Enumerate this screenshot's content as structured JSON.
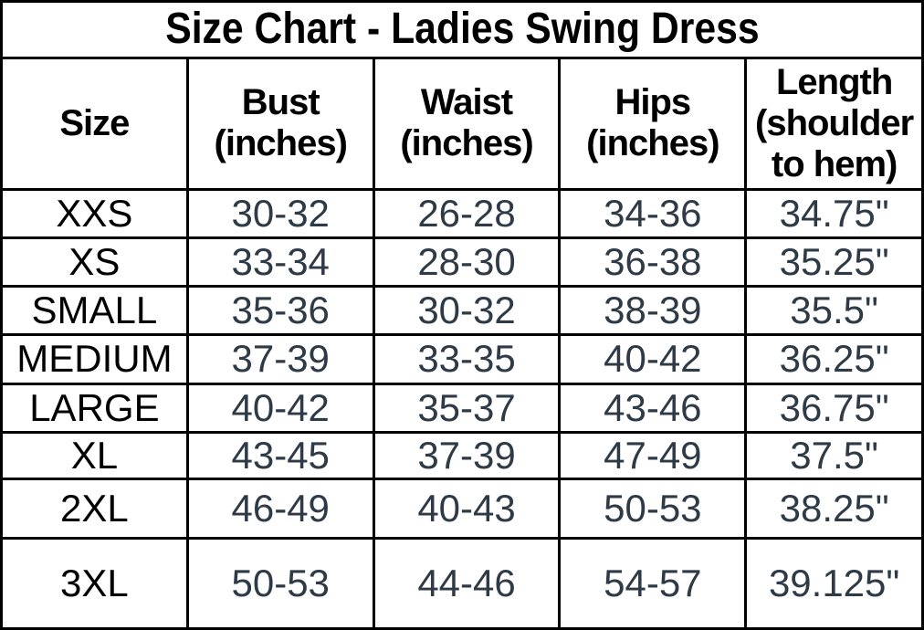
{
  "title": "Size Chart - Ladies Swing Dress",
  "colors": {
    "border": "#000000",
    "title_text": "#000000",
    "header_text": "#000000",
    "size_label_text": "#000000",
    "value_text": "#2e3a46",
    "background": "#ffffff"
  },
  "table": {
    "headers": {
      "size": "Size",
      "bust": "Bust\n(inches)",
      "waist": "Waist\n(inches)",
      "hips": "Hips\n(inches)",
      "length": "Length\n(shoulder\nto hem)"
    },
    "rows": [
      {
        "size": "XXS",
        "bust": "30-32",
        "waist": "26-28",
        "hips": "34-36",
        "length": "34.75\""
      },
      {
        "size": "XS",
        "bust": "33-34",
        "waist": "28-30",
        "hips": "36-38",
        "length": "35.25\""
      },
      {
        "size": "SMALL",
        "bust": "35-36",
        "waist": "30-32",
        "hips": "38-39",
        "length": "35.5\""
      },
      {
        "size": "MEDIUM",
        "bust": "37-39",
        "waist": "33-35",
        "hips": "40-42",
        "length": "36.25\""
      },
      {
        "size": "LARGE",
        "bust": "40-42",
        "waist": "35-37",
        "hips": "43-46",
        "length": "36.75\""
      },
      {
        "size": "XL",
        "bust": "43-45",
        "waist": "37-39",
        "hips": "47-49",
        "length": "37.5\""
      },
      {
        "size": "2XL",
        "bust": "46-49",
        "waist": "40-43",
        "hips": "50-53",
        "length": "38.25\""
      },
      {
        "size": "3XL",
        "bust": "50-53",
        "waist": "44-46",
        "hips": "54-57",
        "length": "39.125\""
      }
    ]
  },
  "chart_data": {
    "type": "table",
    "title": "Size Chart - Ladies Swing Dress",
    "columns": [
      "Size",
      "Bust (inches)",
      "Waist (inches)",
      "Hips (inches)",
      "Length (shoulder to hem)"
    ],
    "rows": [
      [
        "XXS",
        "30-32",
        "26-28",
        "34-36",
        "34.75\""
      ],
      [
        "XS",
        "33-34",
        "28-30",
        "36-38",
        "35.25\""
      ],
      [
        "SMALL",
        "35-36",
        "30-32",
        "38-39",
        "35.5\""
      ],
      [
        "MEDIUM",
        "37-39",
        "33-35",
        "40-42",
        "36.25\""
      ],
      [
        "LARGE",
        "40-42",
        "35-37",
        "43-46",
        "36.75\""
      ],
      [
        "XL",
        "43-45",
        "37-39",
        "47-49",
        "37.5\""
      ],
      [
        "2XL",
        "46-49",
        "40-43",
        "50-53",
        "38.25\""
      ],
      [
        "3XL",
        "50-53",
        "44-46",
        "54-57",
        "39.125\""
      ]
    ],
    "layout": {
      "grid": true,
      "equal_column_widths": true,
      "units": "inches"
    }
  }
}
